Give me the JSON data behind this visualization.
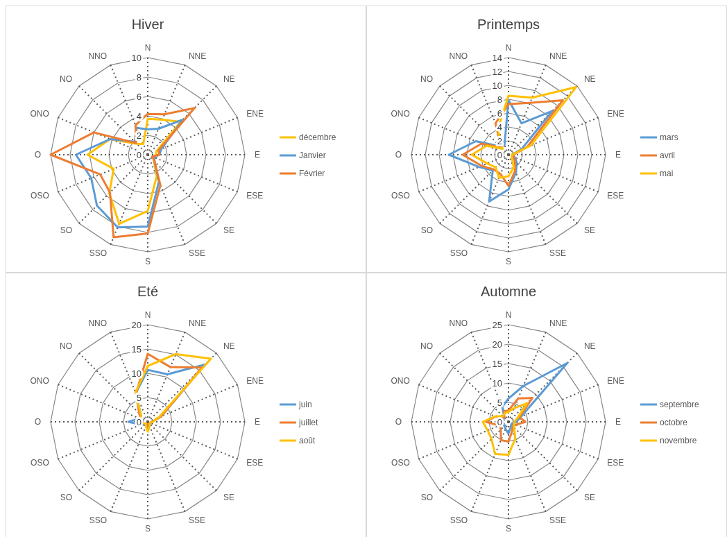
{
  "chart_data": [
    {
      "type": "radar",
      "title": "Hiver",
      "categories": [
        "N",
        "NNE",
        "NE",
        "ENE",
        "E",
        "ESE",
        "SE",
        "SSE",
        "S",
        "SSO",
        "SO",
        "OSO",
        "O",
        "ONO",
        "NO",
        "NNO"
      ],
      "ylim": [
        0,
        10
      ],
      "yticks": [
        0,
        2,
        4,
        6,
        8,
        10
      ],
      "grid": true,
      "legend": "right",
      "line_style": "solid",
      "marker": "none",
      "series": [
        {
          "name": "décembre",
          "color": "#ffc000",
          "values": [
            3.7,
            3.9,
            4.8,
            1.0,
            0.8,
            0.7,
            0.9,
            2.4,
            5.8,
            7.7,
            5.6,
            3.8,
            6.2,
            4.2,
            1.6,
            1.2
          ]
        },
        {
          "name": "Janvier",
          "color": "#5b9bd5",
          "values": [
            2.6,
            2.9,
            5.1,
            1.5,
            1.2,
            0.7,
            1.0,
            3.0,
            7.4,
            8.1,
            7.4,
            6.3,
            7.4,
            4.2,
            1.9,
            3.0
          ]
        },
        {
          "name": "Février",
          "color": "#ed7d31",
          "values": [
            4.2,
            4.5,
            6.8,
            1.2,
            1.2,
            0.5,
            1.0,
            3.4,
            8.1,
            9.2,
            5.5,
            5.3,
            10,
            6.0,
            1.7,
            3.3
          ]
        }
      ]
    },
    {
      "type": "radar",
      "title": "Printemps",
      "categories": [
        "N",
        "NNE",
        "NE",
        "ENE",
        "E",
        "ESE",
        "SE",
        "SSE",
        "S",
        "SSO",
        "SO",
        "OSO",
        "O",
        "ONO",
        "NO",
        "NNO"
      ],
      "ylim": [
        0,
        14
      ],
      "yticks": [
        0,
        2,
        4,
        6,
        8,
        10,
        12,
        14
      ],
      "grid": true,
      "legend": "right",
      "line_style": "solid",
      "marker": "none",
      "series": [
        {
          "name": "mars",
          "color": "#5b9bd5",
          "values": [
            7.9,
            4.9,
            8.9,
            2.0,
            0.5,
            1.0,
            1.7,
            2.8,
            5.0,
            7.3,
            3.2,
            4.6,
            8.6,
            5.1,
            1.7,
            1.5
          ]
        },
        {
          "name": "avril",
          "color": "#ed7d31",
          "values": [
            7.3,
            8.1,
            11.1,
            2.9,
            0.7,
            0.8,
            1.3,
            2.5,
            4.5,
            3.0,
            3.0,
            4.2,
            6.6,
            4.2,
            1.5,
            4.9
          ]
        },
        {
          "name": "mai",
          "color": "#ffc000",
          "values": [
            8.5,
            8.9,
            13.8,
            3.5,
            0.5,
            0.5,
            0.7,
            2.0,
            3.1,
            3.6,
            2.6,
            3.3,
            5.3,
            3.4,
            1.2,
            4.0
          ]
        }
      ]
    },
    {
      "type": "radar",
      "title": "Eté",
      "categories": [
        "N",
        "NNE",
        "NE",
        "ENE",
        "E",
        "ESE",
        "SE",
        "SSE",
        "S",
        "SSO",
        "SO",
        "OSO",
        "O",
        "ONO",
        "NO",
        "NNO"
      ],
      "ylim": [
        0,
        20
      ],
      "yticks": [
        0,
        5,
        10,
        15,
        20
      ],
      "grid": true,
      "legend": "right",
      "line_style": "solid",
      "marker": "none",
      "series": [
        {
          "name": "juin",
          "color": "#5b9bd5",
          "values": [
            10.7,
            10.6,
            16.7,
            3.0,
            1.0,
            0.5,
            0.5,
            0.8,
            1.5,
            0.8,
            0.8,
            1.5,
            4.0,
            1.8,
            2.0,
            6.4
          ]
        },
        {
          "name": "juillet",
          "color": "#ed7d31",
          "values": [
            14.0,
            12.2,
            15.8,
            3.0,
            1.0,
            0.5,
            0.5,
            0.5,
            0.8,
            0.5,
            0.5,
            0.8,
            1.6,
            1.5,
            2.5,
            6.3
          ]
        },
        {
          "name": "août",
          "color": "#ffc000",
          "values": [
            11.5,
            15.1,
            18.4,
            2.5,
            1.0,
            0.5,
            0.5,
            1.0,
            2.0,
            1.0,
            0.5,
            0.8,
            1.6,
            1.5,
            2.0,
            6.6
          ]
        }
      ]
    },
    {
      "type": "radar",
      "title": "Automne",
      "categories": [
        "N",
        "NNE",
        "NE",
        "ENE",
        "E",
        "ESE",
        "SE",
        "SSE",
        "S",
        "SSO",
        "SO",
        "OSO",
        "O",
        "ONO",
        "NO",
        "NNO"
      ],
      "ylim": [
        0,
        25
      ],
      "yticks": [
        0,
        5,
        10,
        15,
        20,
        25
      ],
      "grid": true,
      "legend": "right",
      "line_style": "solid",
      "marker": "none",
      "series": [
        {
          "name": "septembre",
          "color": "#5b9bd5",
          "values": [
            6.0,
            10.0,
            21.4,
            3.5,
            2.0,
            1.0,
            1.0,
            1.5,
            3.0,
            2.0,
            1.5,
            1.5,
            2.0,
            1.5,
            1.5,
            4.2
          ]
        },
        {
          "name": "octobre",
          "color": "#ed7d31",
          "values": [
            2.9,
            6.5,
            8.7,
            3.0,
            4.4,
            2.0,
            1.5,
            2.5,
            5.1,
            5.1,
            2.8,
            2.5,
            5.8,
            3.6,
            1.5,
            3.0
          ]
        },
        {
          "name": "novembre",
          "color": "#ffc000",
          "values": [
            2.6,
            3.8,
            6.8,
            2.5,
            1.5,
            1.5,
            2.0,
            4.6,
            8.5,
            9.0,
            6.2,
            5.8,
            6.6,
            3.7,
            2.0,
            2.5
          ]
        }
      ]
    }
  ]
}
